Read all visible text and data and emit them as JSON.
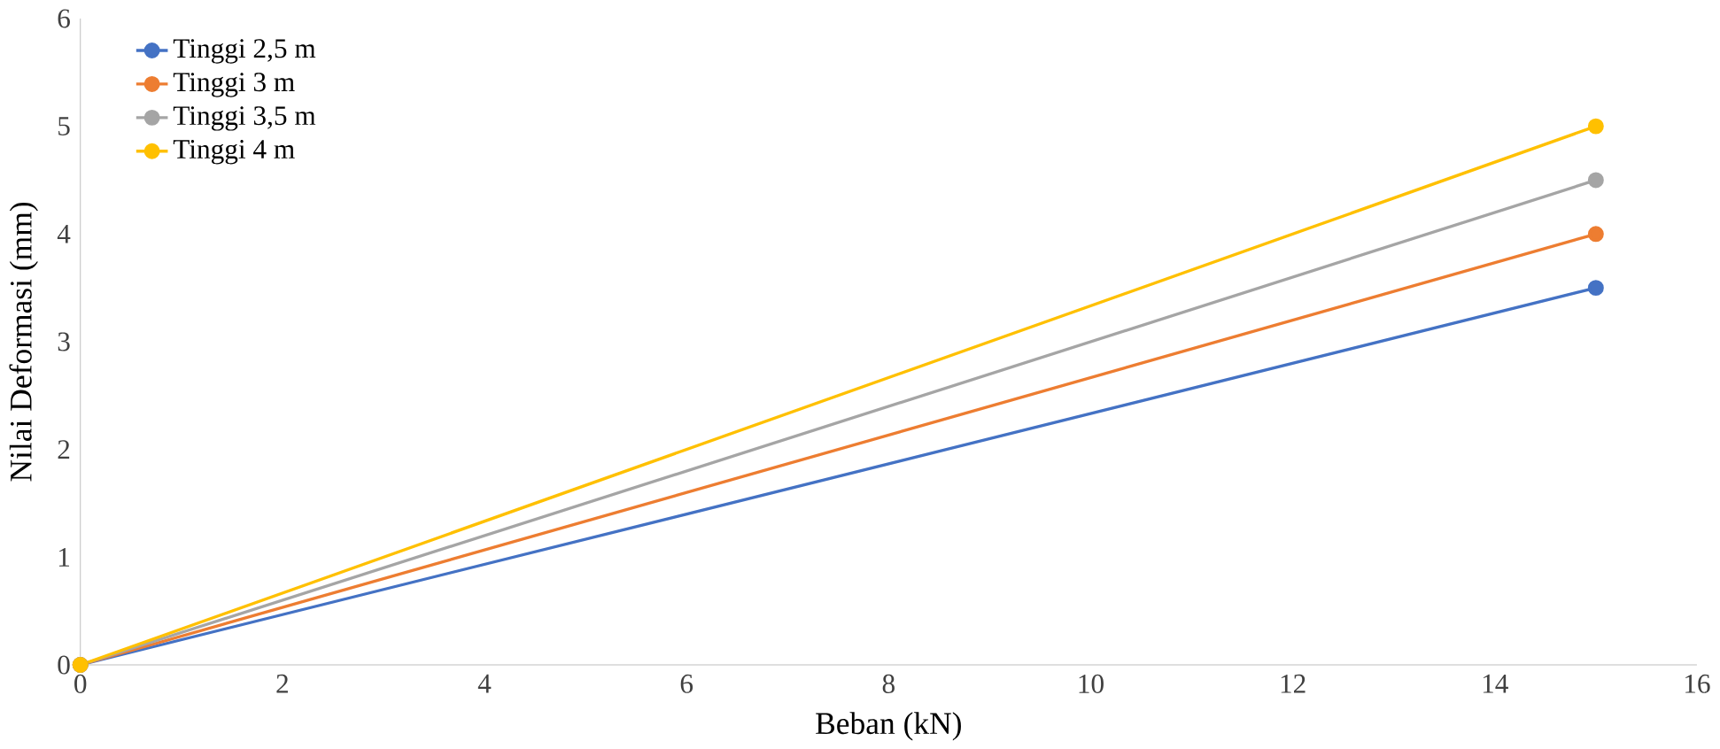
{
  "chart_data": {
    "type": "line",
    "xlabel": "Beban (kN)",
    "ylabel": "Nilai Deformasi (mm)",
    "x": [
      0,
      15
    ],
    "series": [
      {
        "name": "Tinggi 2,5 m",
        "color": "#4472c4",
        "values": [
          0,
          3.5
        ]
      },
      {
        "name": "Tinggi 3 m",
        "color": "#ed7d31",
        "values": [
          0,
          4
        ]
      },
      {
        "name": "Tinggi 3,5 m",
        "color": "#a5a5a5",
        "values": [
          0,
          4.5
        ]
      },
      {
        "name": "Tinggi 4 m",
        "color": "#ffc000",
        "values": [
          0,
          5
        ]
      }
    ],
    "xlim": [
      0,
      16
    ],
    "xticks": [
      0,
      2,
      4,
      6,
      8,
      10,
      12,
      14,
      16
    ],
    "ylim": [
      0,
      6
    ],
    "yticks": [
      0,
      1,
      2,
      3,
      4,
      5,
      6
    ],
    "grid": false,
    "legend": "top left",
    "marker": "circle",
    "line_style": "solid"
  }
}
